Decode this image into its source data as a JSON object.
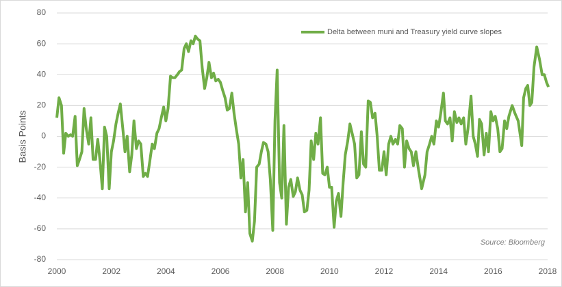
{
  "chart_data": {
    "type": "line",
    "y_label": "Basis Points",
    "annotation": "Source:  Bloomberg",
    "legend": "upper right",
    "grid": true,
    "xlim": [
      2000,
      2018
    ],
    "xticks": [
      2000,
      2002,
      2004,
      2006,
      2008,
      2010,
      2012,
      2014,
      2016,
      2018
    ],
    "ylim": [
      -80,
      80
    ],
    "yticks": [
      -80,
      -60,
      -40,
      -20,
      0,
      20,
      40,
      60,
      80
    ],
    "x": [
      2000.0,
      2000.08,
      2000.17,
      2000.25,
      2000.33,
      2000.42,
      2000.5,
      2000.58,
      2000.67,
      2000.75,
      2000.83,
      2000.92,
      2001.0,
      2001.08,
      2001.17,
      2001.25,
      2001.33,
      2001.42,
      2001.5,
      2001.58,
      2001.67,
      2001.75,
      2001.83,
      2001.92,
      2002.0,
      2002.08,
      2002.17,
      2002.25,
      2002.33,
      2002.42,
      2002.5,
      2002.58,
      2002.67,
      2002.75,
      2002.83,
      2002.92,
      2003.0,
      2003.08,
      2003.17,
      2003.25,
      2003.33,
      2003.42,
      2003.5,
      2003.58,
      2003.67,
      2003.75,
      2003.83,
      2003.92,
      2004.0,
      2004.08,
      2004.17,
      2004.25,
      2004.33,
      2004.42,
      2004.5,
      2004.58,
      2004.67,
      2004.75,
      2004.83,
      2004.92,
      2005.0,
      2005.08,
      2005.17,
      2005.25,
      2005.33,
      2005.42,
      2005.5,
      2005.58,
      2005.67,
      2005.75,
      2005.83,
      2005.92,
      2006.0,
      2006.08,
      2006.17,
      2006.25,
      2006.33,
      2006.42,
      2006.5,
      2006.58,
      2006.67,
      2006.75,
      2006.83,
      2006.92,
      2007.0,
      2007.08,
      2007.17,
      2007.25,
      2007.33,
      2007.42,
      2007.5,
      2007.58,
      2007.67,
      2007.75,
      2007.83,
      2007.92,
      2008.0,
      2008.08,
      2008.17,
      2008.25,
      2008.33,
      2008.42,
      2008.5,
      2008.58,
      2008.67,
      2008.75,
      2008.83,
      2008.92,
      2009.0,
      2009.08,
      2009.17,
      2009.25,
      2009.33,
      2009.42,
      2009.5,
      2009.58,
      2009.67,
      2009.75,
      2009.83,
      2009.92,
      2010.0,
      2010.08,
      2010.17,
      2010.25,
      2010.33,
      2010.42,
      2010.5,
      2010.58,
      2010.67,
      2010.75,
      2010.83,
      2010.92,
      2011.0,
      2011.08,
      2011.17,
      2011.25,
      2011.33,
      2011.42,
      2011.5,
      2011.58,
      2011.67,
      2011.75,
      2011.83,
      2011.92,
      2012.0,
      2012.08,
      2012.17,
      2012.25,
      2012.33,
      2012.42,
      2012.5,
      2012.58,
      2012.67,
      2012.75,
      2012.83,
      2012.92,
      2013.0,
      2013.08,
      2013.17,
      2013.25,
      2013.38,
      2013.5,
      2013.58,
      2013.67,
      2013.75,
      2013.83,
      2013.92,
      2014.0,
      2014.08,
      2014.18,
      2014.25,
      2014.33,
      2014.42,
      2014.5,
      2014.58,
      2014.67,
      2014.75,
      2014.83,
      2014.92,
      2015.0,
      2015.08,
      2015.19,
      2015.27,
      2015.35,
      2015.43,
      2015.5,
      2015.58,
      2015.67,
      2015.75,
      2015.83,
      2015.92,
      2016.0,
      2016.08,
      2016.17,
      2016.25,
      2016.33,
      2016.42,
      2016.5,
      2016.58,
      2016.7,
      2016.8,
      2016.92,
      2017.05,
      2017.12,
      2017.2,
      2017.27,
      2017.35,
      2017.42,
      2017.5,
      2017.6,
      2017.7,
      2017.8,
      2017.88,
      2017.96,
      2018.03
    ],
    "series": [
      {
        "name": "Delta between muni and Treasury yield curve slopes",
        "color": "#70ad47",
        "values": [
          12,
          25,
          20,
          -11,
          2,
          0,
          1,
          0,
          13,
          -19,
          -15,
          -10,
          18,
          5,
          -5,
          12,
          -15,
          -15,
          -2,
          -15,
          -34,
          6,
          0,
          -34,
          -10,
          -3,
          8,
          15,
          21,
          5,
          -10,
          0,
          -23,
          -12,
          10,
          -8,
          -3,
          -5,
          -26,
          -24,
          -26,
          -15,
          -5,
          -8,
          2,
          5,
          12,
          19,
          10,
          18,
          39,
          38,
          38,
          40,
          42,
          43,
          57,
          60,
          55,
          62,
          60,
          65,
          63,
          62,
          45,
          31,
          38,
          48,
          38,
          41,
          36,
          37,
          35,
          30,
          25,
          17,
          18,
          28,
          15,
          5,
          -5,
          -27,
          -15,
          -49,
          -30,
          -63,
          -68,
          -55,
          -20,
          -18,
          -10,
          -4,
          -5,
          -10,
          -28,
          -61,
          10,
          43,
          -30,
          -40,
          7,
          -57,
          -33,
          -28,
          -39,
          -36,
          -27,
          -35,
          -38,
          -49,
          -48,
          -35,
          -3,
          -15,
          2,
          -5,
          12,
          -24,
          -25,
          -20,
          -33,
          -33,
          -59,
          -42,
          -37,
          -52,
          -30,
          -12,
          -3,
          8,
          2,
          -5,
          -27,
          -25,
          3,
          -18,
          -20,
          23,
          22,
          12,
          15,
          0,
          -22,
          -22,
          -10,
          -25,
          -5,
          0,
          -5,
          -2,
          -5,
          7,
          5,
          -20,
          -3,
          -8,
          -10,
          -19,
          -10,
          -20,
          -34,
          -25,
          -10,
          -5,
          0,
          -5,
          10,
          6,
          15,
          28,
          10,
          8,
          12,
          -3,
          16,
          9,
          12,
          8,
          12,
          -5,
          5,
          26,
          0,
          -5,
          -13,
          11,
          8,
          -12,
          2,
          -10,
          16,
          10,
          13,
          5,
          -10,
          -8,
          10,
          5,
          13,
          20,
          15,
          10,
          -6,
          25,
          31,
          33,
          20,
          22,
          45,
          58,
          50,
          40,
          40,
          35,
          32
        ]
      }
    ]
  }
}
